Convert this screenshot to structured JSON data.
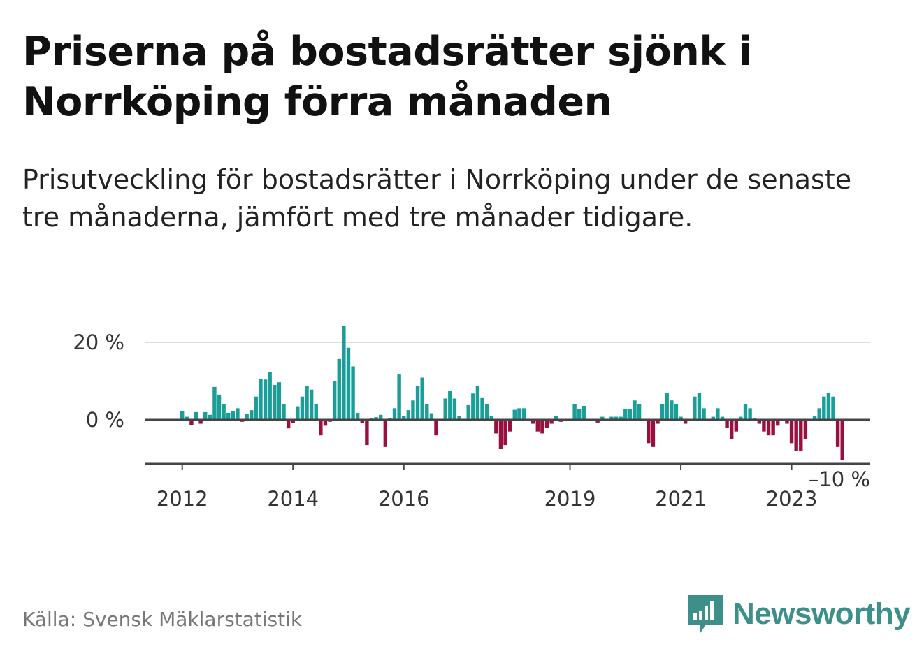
{
  "title": "Priserna på bostadsrätter sjönk i Norrköping förra månaden",
  "subtitle": "Prisutveckling för bostadsrätter i Norrköping under de senaste tre månaderna, jämfört med tre månader tidigare.",
  "source": "Källa: Svensk Mäklarstatistik",
  "brand": {
    "name": "Newsworthy",
    "icon": "newsworthy-logo-icon"
  },
  "colors": {
    "positive": "#1a9e98",
    "negative": "#99103f",
    "brand": "#3d8f8a"
  },
  "chart_data": {
    "type": "bar",
    "title": "Priserna på bostadsrätter sjönk i Norrköping förra månaden",
    "xlabel": "",
    "ylabel": "Prisutveckling",
    "unit": "%",
    "ylim": [
      -10,
      24
    ],
    "start": "2012-01",
    "frequency": "monthly",
    "gridlines": [
      20,
      0
    ],
    "y_tick_labels": [
      {
        "value": 20,
        "label": "20 %"
      },
      {
        "value": 0,
        "label": "0 %"
      },
      {
        "value": -10,
        "label": "–10 %"
      }
    ],
    "x_tick_labels": [
      {
        "index": 0,
        "label": "2012"
      },
      {
        "index": 24,
        "label": "2014"
      },
      {
        "index": 48,
        "label": "2016"
      },
      {
        "index": 84,
        "label": "2019"
      },
      {
        "index": 108,
        "label": "2021"
      },
      {
        "index": 132,
        "label": "2023"
      }
    ],
    "values": [
      2.2,
      0.8,
      -1.3,
      2.0,
      -1.0,
      2.0,
      1.3,
      8.5,
      6.5,
      4.0,
      1.8,
      2.2,
      3.0,
      -0.5,
      1.5,
      2.5,
      6.0,
      10.5,
      10.4,
      12.4,
      9.0,
      9.7,
      4.0,
      -2.2,
      -0.8,
      3.5,
      6.0,
      8.8,
      7.8,
      4.0,
      -4.0,
      -1.5,
      -0.5,
      10.0,
      15.7,
      24.2,
      18.6,
      13.8,
      1.8,
      -0.8,
      -6.5,
      0.5,
      0.7,
      1.3,
      -7.0,
      0.5,
      3.0,
      11.7,
      1.0,
      2.5,
      5.0,
      8.8,
      10.9,
      4.1,
      1.7,
      -4.0,
      0.2,
      5.5,
      7.5,
      5.5,
      1.0,
      0.2,
      3.8,
      6.8,
      8.8,
      5.8,
      4.0,
      1.0,
      -3.5,
      -7.5,
      -6.5,
      -3.0,
      2.6,
      3.0,
      3.0,
      0.2,
      -1.0,
      -3.0,
      -3.5,
      -2.0,
      -1.0,
      1.0,
      -0.5,
      0.2,
      0.2,
      4.0,
      2.8,
      3.6,
      0.2,
      0.2,
      -0.7,
      0.8,
      0.2,
      0.8,
      0.8,
      0.8,
      2.7,
      2.8,
      5.0,
      4.0,
      0.2,
      -6.0,
      -7.0,
      -1.0,
      4.0,
      7.0,
      5.0,
      4.0,
      0.8,
      -1.0,
      0.2,
      6.0,
      7.0,
      3.0,
      0.2,
      0.8,
      3.0,
      0.8,
      -2.0,
      -5.0,
      -3.0,
      0.8,
      4.0,
      3.0,
      0.5,
      -1.0,
      -3.0,
      -4.0,
      -4.0,
      -1.5,
      0.2,
      -1.0,
      -6.0,
      -8.0,
      -8.0,
      -5.0,
      0.2,
      1.0,
      3.0,
      6.0,
      7.0,
      6.0,
      -7.0,
      -10.4
    ]
  }
}
